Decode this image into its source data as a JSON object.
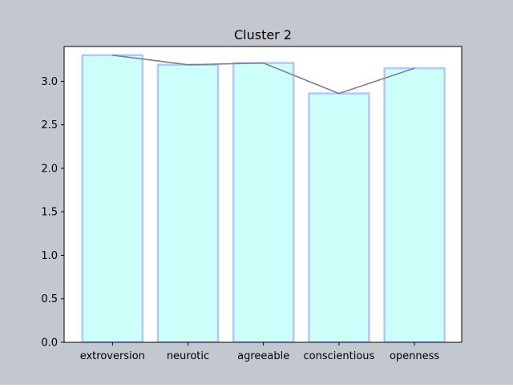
{
  "colors": {
    "figure_background": "#c3c7ce",
    "plot_background": "#ffffff",
    "bar_fill": "#ccfffa",
    "bar_edge": "#b3c6ff",
    "line": "#808080",
    "text": "#000000"
  },
  "chart_data": {
    "type": "bar",
    "title": "Cluster 2",
    "xlabel": "",
    "ylabel": "",
    "categories": [
      "extroversion",
      "neurotic",
      "agreeable",
      "conscientious",
      "openness"
    ],
    "values": [
      3.3,
      3.19,
      3.21,
      2.86,
      3.15
    ],
    "overlay_line": {
      "type": "line",
      "values": [
        3.3,
        3.19,
        3.21,
        2.86,
        3.15
      ]
    },
    "ylim": [
      0,
      3.4
    ],
    "yticks": [
      "0.0",
      "0.5",
      "1.0",
      "1.5",
      "2.0",
      "2.5",
      "3.0"
    ],
    "grid": false,
    "legend": "none"
  }
}
